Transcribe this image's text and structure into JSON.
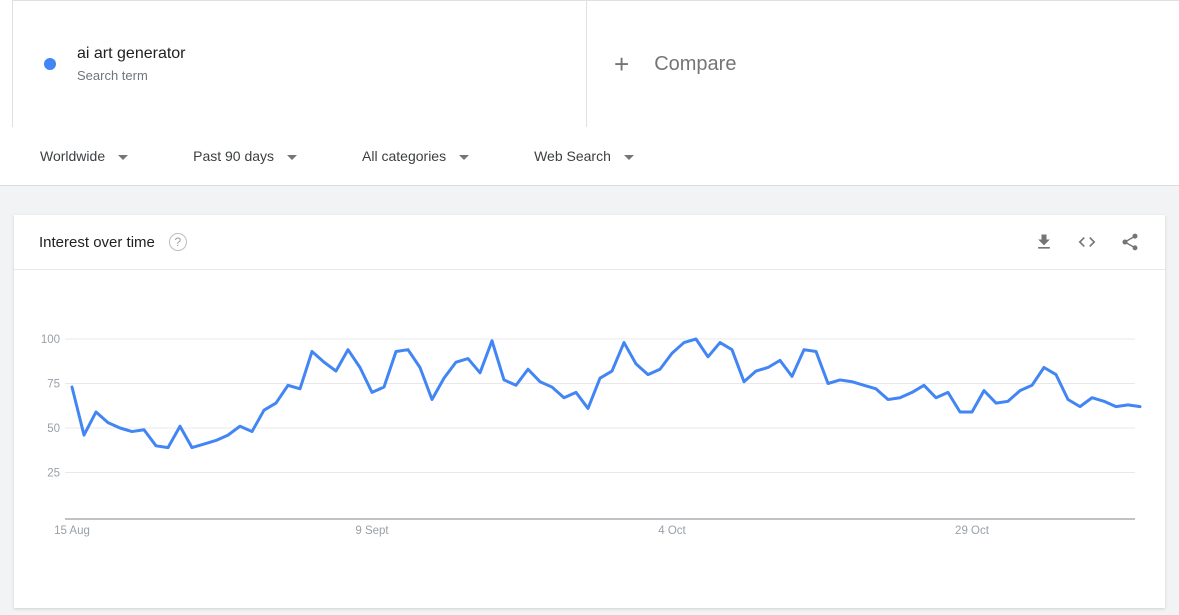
{
  "terms": {
    "term": "ai art generator",
    "type": "Search term",
    "dot_color": "#4285f4"
  },
  "compare": {
    "plus_glyph": "+",
    "label": "Compare"
  },
  "filters": [
    {
      "label": "Worldwide"
    },
    {
      "label": "Past 90 days"
    },
    {
      "label": "All categories"
    },
    {
      "label": "Web Search"
    }
  ],
  "chart": {
    "title": "Interest over time",
    "help_glyph": "?"
  },
  "toolbar": {
    "icons": [
      "download-icon",
      "embed-icon",
      "share-icon"
    ]
  },
  "colors": {
    "line": "#4285f4",
    "gridline": "#e8e8e8",
    "axis": "#80868b",
    "tick_text": "#9aa0a6"
  },
  "chart_data": {
    "type": "line",
    "title": "Interest over time",
    "series_name": "ai art generator",
    "x_tick_labels": [
      "15 Aug",
      "9 Sept",
      "4 Oct",
      "29 Oct"
    ],
    "x_tick_indices": [
      0,
      25,
      50,
      75
    ],
    "y_ticks": [
      25,
      50,
      75,
      100
    ],
    "ylim": [
      0,
      100
    ],
    "grid": "horizontal-only",
    "legend": "none",
    "line_color": "#4285f4",
    "values": [
      73,
      46,
      59,
      53,
      50,
      48,
      49,
      40,
      39,
      51,
      39,
      41,
      43,
      46,
      51,
      48,
      60,
      64,
      74,
      72,
      93,
      87,
      82,
      94,
      84,
      70,
      73,
      93,
      94,
      84,
      66,
      78,
      87,
      89,
      81,
      99,
      77,
      74,
      83,
      76,
      73,
      67,
      70,
      61,
      78,
      82,
      98,
      86,
      80,
      83,
      92,
      98,
      100,
      90,
      98,
      94,
      76,
      82,
      84,
      88,
      79,
      94,
      93,
      75,
      77,
      76,
      74,
      72,
      66,
      67,
      70,
      74,
      67,
      70,
      59,
      59,
      71,
      64,
      65,
      71,
      74,
      84,
      80,
      66,
      62,
      67,
      65,
      62,
      63,
      62
    ]
  }
}
